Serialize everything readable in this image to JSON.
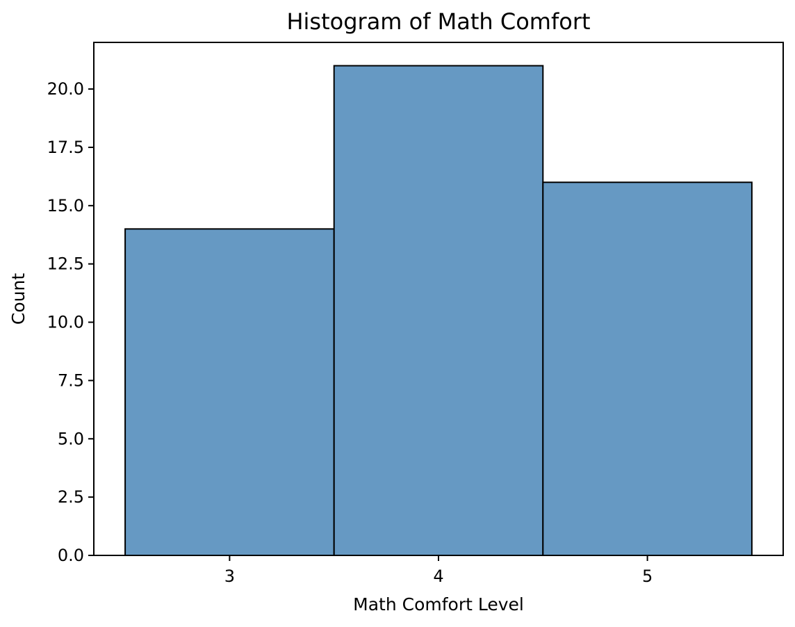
{
  "chart_data": {
    "type": "bar",
    "title": "Histogram of Math Comfort",
    "xlabel": "Math Comfort Level",
    "ylabel": "Count",
    "categories": [
      "3",
      "4",
      "5"
    ],
    "x": [
      3,
      4,
      5
    ],
    "values": [
      14,
      21,
      16
    ],
    "bin_width": 1,
    "xlim": [
      2.35,
      5.65
    ],
    "ylim": [
      0,
      22
    ],
    "y_ticks": [
      0.0,
      2.5,
      5.0,
      7.5,
      10.0,
      12.5,
      15.0,
      17.5,
      20.0
    ],
    "y_tick_labels": [
      "0.0",
      "2.5",
      "5.0",
      "7.5",
      "10.0",
      "12.5",
      "15.0",
      "17.5",
      "20.0"
    ],
    "grid": false,
    "legend": "none",
    "bar_color": "#6699c3",
    "edge_color": "#000000"
  }
}
